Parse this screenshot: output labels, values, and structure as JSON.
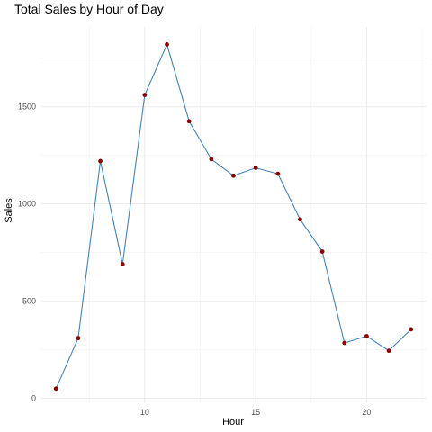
{
  "chart_data": {
    "type": "line",
    "title": "Total Sales by Hour of Day",
    "xlabel": "Hour",
    "ylabel": "Sales",
    "xlim": [
      5.3,
      22.7
    ],
    "ylim": [
      -25,
      1910
    ],
    "x_ticks": [
      10,
      15,
      20
    ],
    "y_ticks": [
      0,
      500,
      1000,
      1500
    ],
    "grid": true,
    "line_color": "#4682B4",
    "point_color": "#8B0000",
    "series": [
      {
        "x": [
          6,
          7,
          8,
          9,
          10,
          11,
          12,
          13,
          14,
          15,
          16,
          17,
          18,
          19,
          20,
          21,
          22
        ],
        "values": [
          50,
          310,
          1220,
          690,
          1560,
          1820,
          1425,
          1230,
          1145,
          1185,
          1155,
          920,
          755,
          285,
          320,
          245,
          355
        ]
      }
    ]
  }
}
